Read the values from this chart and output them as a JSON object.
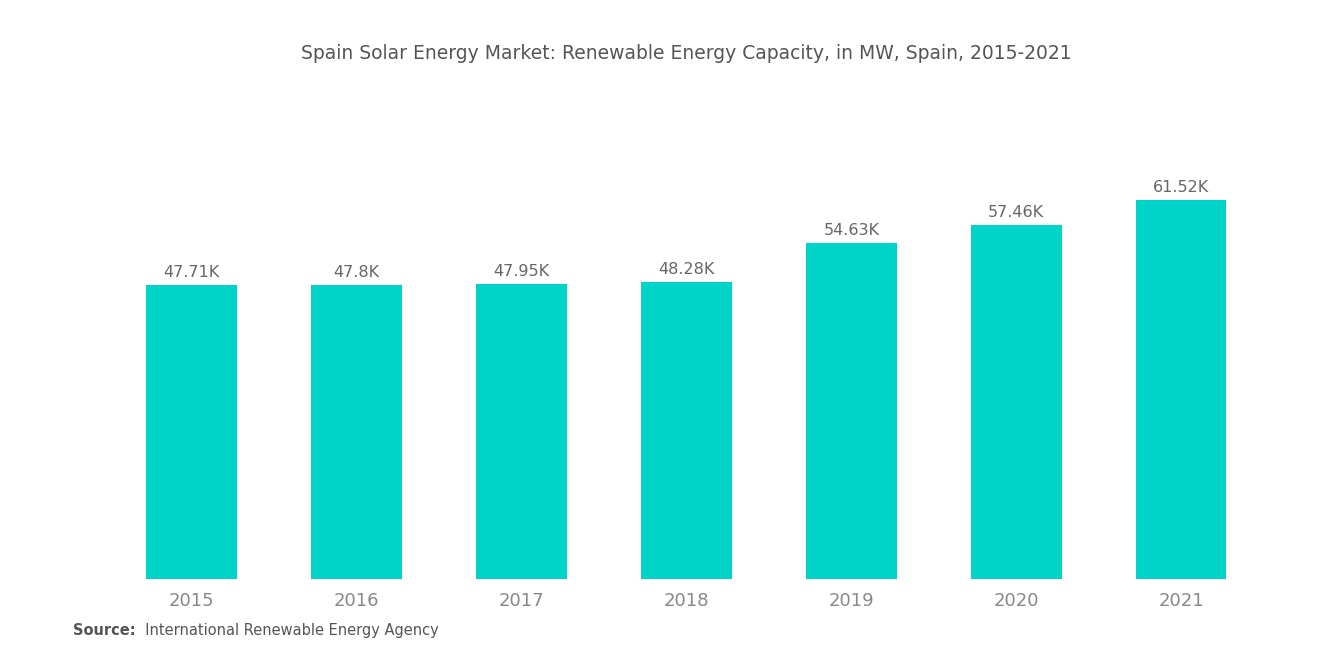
{
  "title": "Spain Solar Energy Market: Renewable Energy Capacity, in MW, Spain, 2015-2021",
  "categories": [
    "2015",
    "2016",
    "2017",
    "2018",
    "2019",
    "2020",
    "2021"
  ],
  "values": [
    47710,
    47800,
    47950,
    48280,
    54630,
    57460,
    61520
  ],
  "labels": [
    "47.71K",
    "47.8K",
    "47.95K",
    "48.28K",
    "54.63K",
    "57.46K",
    "61.52K"
  ],
  "bar_color": "#00D4C8",
  "background_color": "#ffffff",
  "title_fontsize": 13.5,
  "source_bold": "Source:",
  "source_rest": "  International Renewable Energy Agency",
  "ylim_min": 0,
  "ylim_max": 80000,
  "bar_width": 0.55,
  "label_color": "#666666",
  "xtick_color": "#888888",
  "title_color": "#555555"
}
